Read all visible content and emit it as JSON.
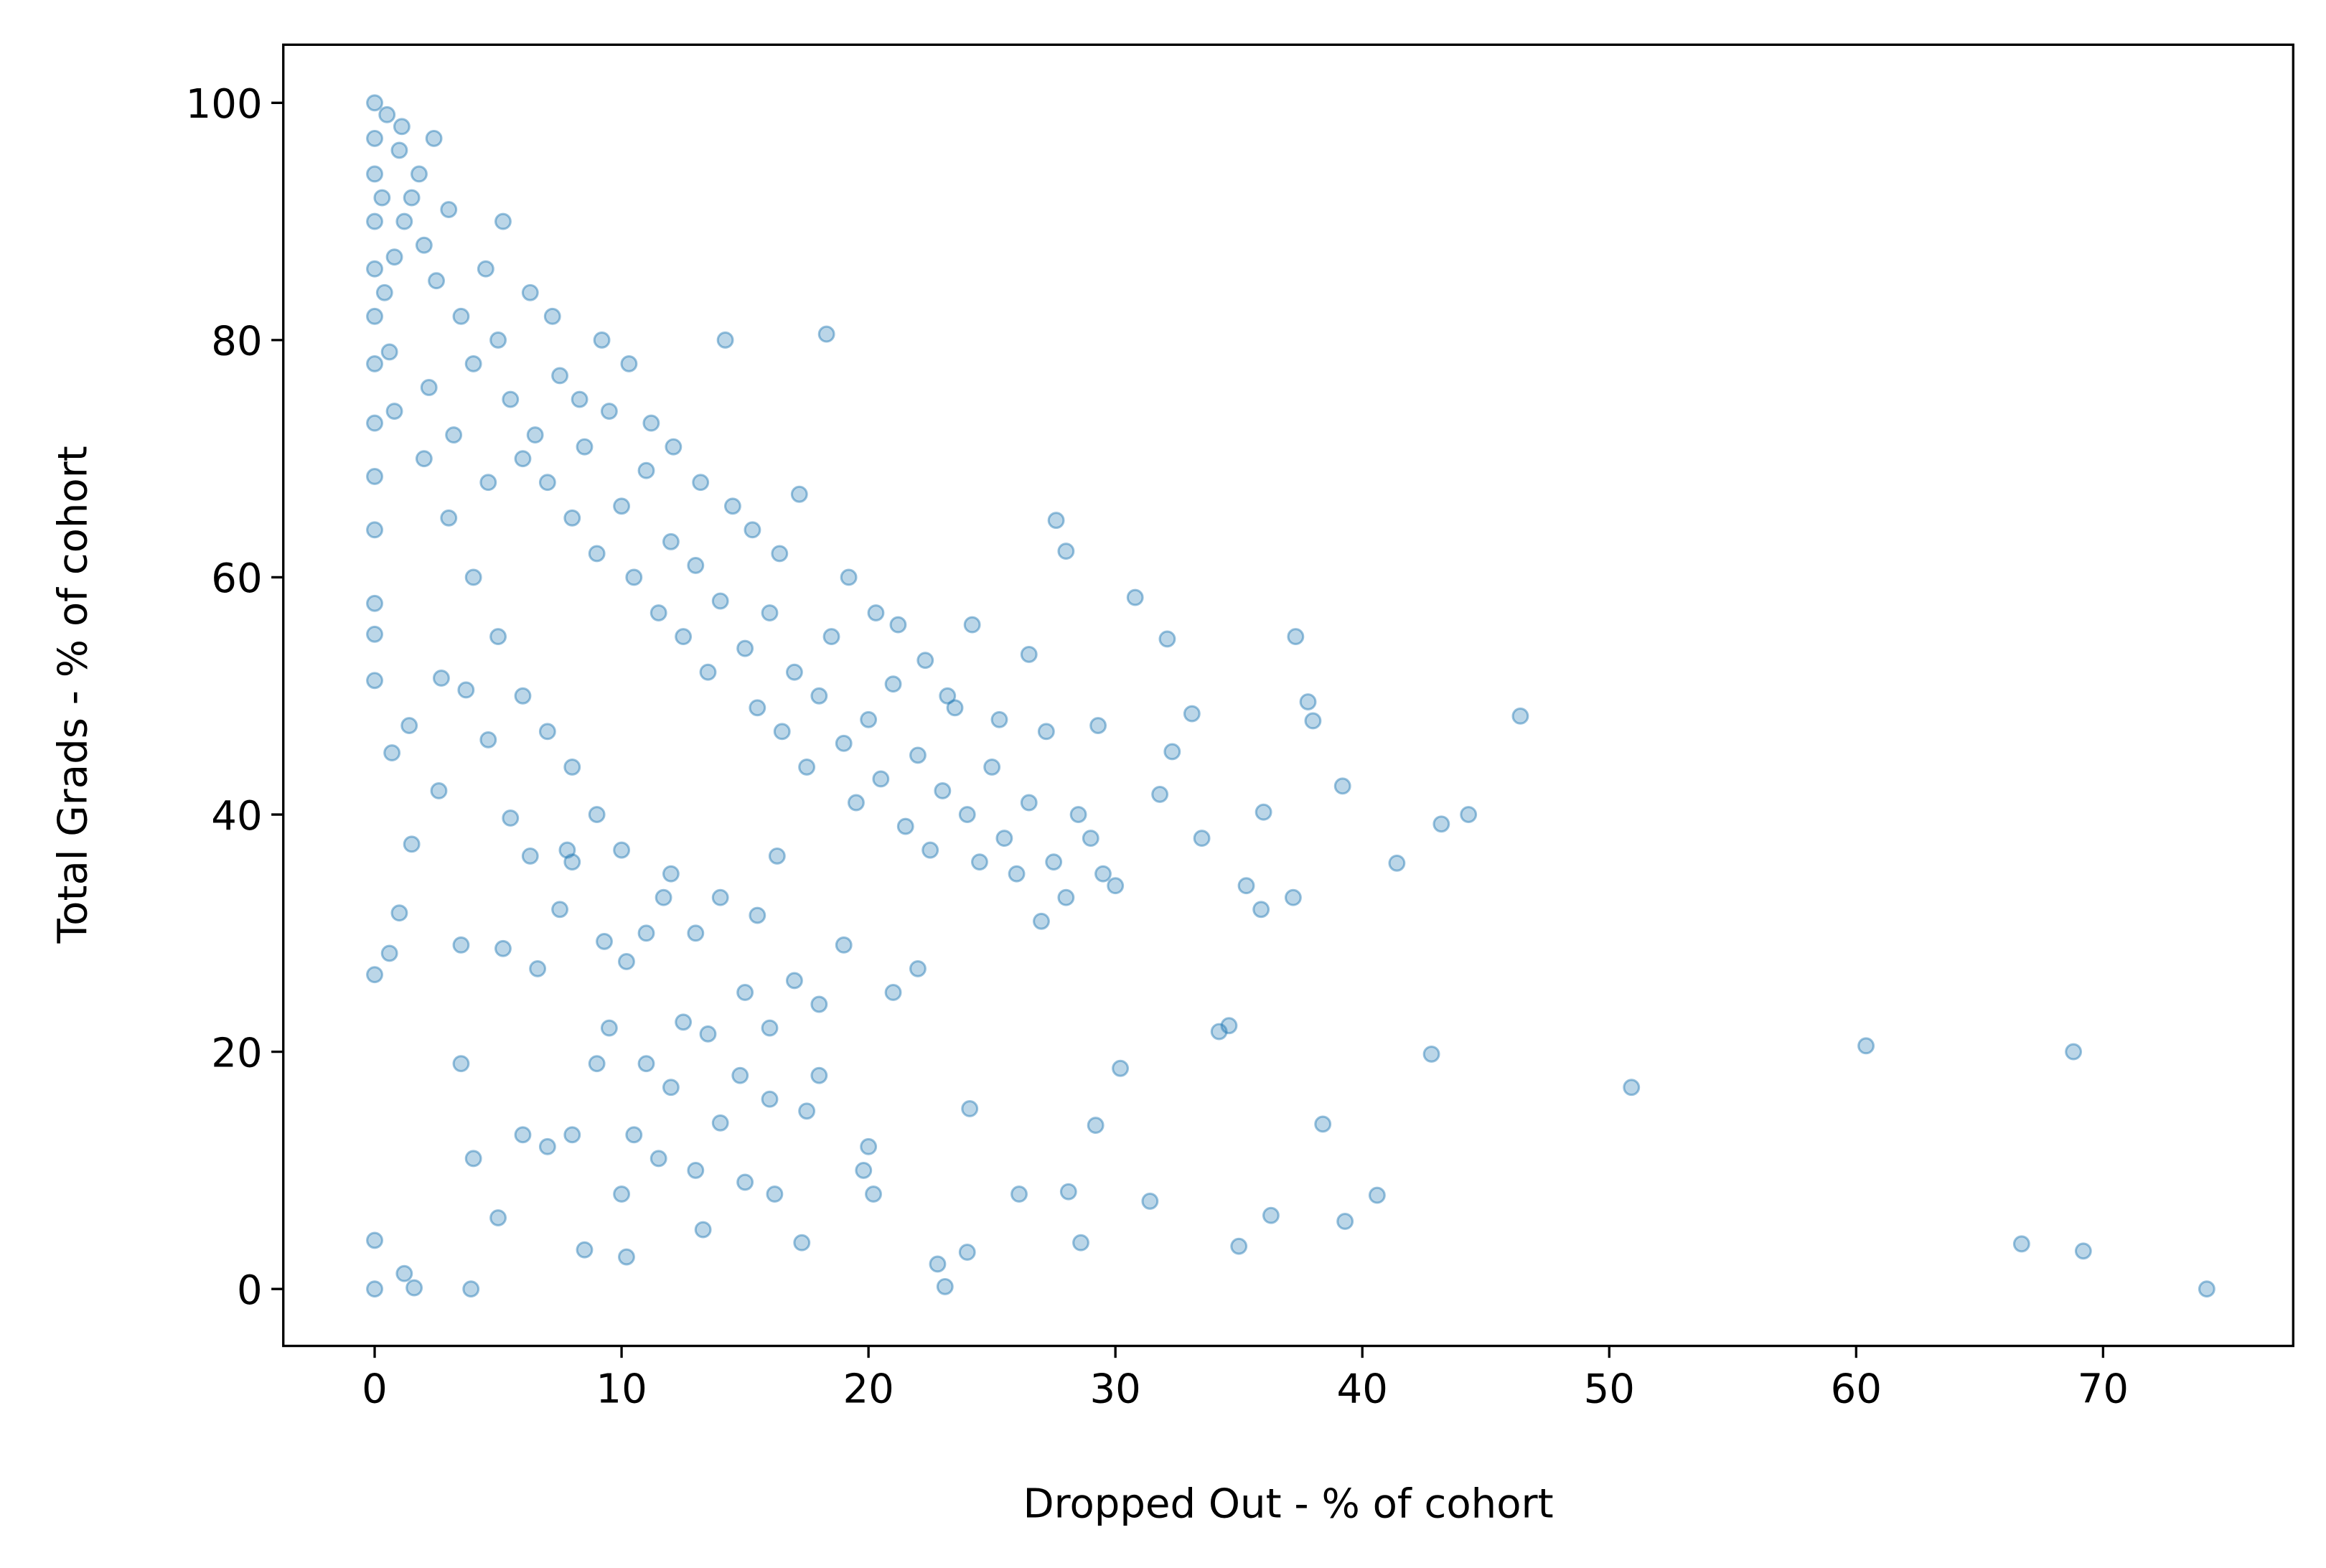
{
  "chart_data": {
    "type": "scatter",
    "x_label": "Dropped Out - % of cohort",
    "y_label": "Total Grads - % of cohort",
    "color": "#1f77b4",
    "xlim": [
      -3.7,
      77.7
    ],
    "ylim": [
      -4.8,
      104.9
    ],
    "xticks": [
      0,
      10,
      20,
      30,
      40,
      50,
      60,
      70
    ],
    "yticks": [
      0,
      20,
      40,
      60,
      80,
      100
    ],
    "grid": false,
    "x": [
      74.2,
      69.2,
      66.7,
      68.8,
      60.4,
      50.9,
      46.4,
      44.3,
      43.2,
      42.8,
      41.4,
      40.6,
      39.3,
      39.2,
      38.4,
      38,
      37.8,
      37.3,
      37.2,
      36.3,
      36,
      35.9,
      35.3,
      35,
      34.6,
      34.2,
      33.5,
      33.1,
      32.3,
      32.1,
      31.8,
      31.4,
      30.8,
      30.2,
      29.2,
      28.6,
      28.1,
      27.6,
      28,
      26.1,
      24.1,
      24,
      23.1,
      22.8,
      17.3,
      13.3,
      10.2,
      8.5,
      3.9,
      1.6,
      1.2,
      0,
      0,
      0,
      0.6,
      1,
      0.7,
      0,
      0,
      0,
      0,
      0,
      0,
      0,
      0,
      0,
      0,
      0,
      0,
      0,
      0.5,
      1,
      1.5,
      2,
      2.5,
      3,
      3.5,
      4,
      4.5,
      5,
      5.5,
      6,
      6.5,
      7,
      7.5,
      8,
      8.5,
      9,
      9.5,
      10,
      10.5,
      11,
      11.5,
      12,
      12.5,
      13,
      13.5,
      14,
      14.5,
      15,
      15.5,
      16,
      16.5,
      17,
      17.5,
      18,
      18.5,
      19,
      19.5,
      20,
      20.5,
      21,
      21.5,
      22,
      22.5,
      23,
      23.5,
      24,
      24.5,
      25,
      25.5,
      26,
      26.5,
      27,
      27.5,
      28,
      29,
      29.5,
      30,
      2,
      3,
      4,
      5,
      6,
      7,
      8,
      9,
      10,
      11,
      12,
      13,
      14,
      15,
      16,
      17,
      18,
      19,
      20,
      21,
      22,
      3.5,
      4,
      5,
      6,
      7,
      8,
      9,
      10,
      11,
      12,
      13,
      14,
      15,
      16,
      16.2,
      18,
      19.8,
      20.2,
      0.8,
      1.2,
      2.2,
      3.2,
      4.6,
      5.2,
      6.3,
      7.2,
      8.3,
      9.2,
      10.3,
      11.2,
      12.1,
      13.2,
      14.2,
      15.3,
      16.4,
      17.2,
      18.3,
      19.2,
      20.3,
      21.2,
      22.3,
      23.2,
      24.2,
      25.3,
      26.5,
      27.2,
      28.5,
      29.3,
      2.6,
      1.5,
      3.5,
      5.2,
      6.6,
      7.5,
      8,
      9.5,
      10.5,
      11.5,
      12.5,
      13.5,
      14.8,
      15.5,
      16.3,
      17.5,
      1.4,
      2.7,
      3.7,
      4.6,
      5.5,
      6.3,
      7.8,
      9.3,
      10.2,
      11.7,
      0.3,
      0.4,
      0.6,
      0.8,
      1.1,
      1.8,
      2.4
    ],
    "values": [
      0,
      3.2,
      3.8,
      20,
      20.5,
      17,
      48.3,
      40,
      39.2,
      19.8,
      35.9,
      7.9,
      5.7,
      42.4,
      13.9,
      47.9,
      49.5,
      55,
      33,
      6.2,
      40.2,
      32,
      34,
      3.6,
      22.2,
      21.7,
      38,
      48.5,
      45.3,
      54.8,
      41.7,
      7.4,
      58.3,
      18.6,
      13.8,
      3.9,
      8.2,
      64.8,
      62.2,
      8,
      15.2,
      3.1,
      0.2,
      2.1,
      3.9,
      5,
      2.7,
      3.3,
      0,
      0.1,
      1.3,
      0,
      4.1,
      26.5,
      28.3,
      31.7,
      45.2,
      51.3,
      55.2,
      57.8,
      64,
      68.5,
      73,
      78,
      82,
      86,
      90,
      94,
      97,
      100,
      99,
      96,
      92,
      88,
      85,
      91,
      82,
      78,
      86,
      80,
      75,
      70,
      72,
      68,
      77,
      65,
      71,
      62,
      74,
      66,
      60,
      69,
      57,
      63,
      55,
      61,
      52,
      58,
      66,
      54,
      49,
      57,
      47,
      52,
      44,
      50,
      55,
      46,
      41,
      48,
      43,
      51,
      39,
      45,
      37,
      42,
      49,
      40,
      36,
      44,
      38,
      35,
      41,
      31,
      36,
      33,
      38,
      35,
      34,
      70,
      65,
      60,
      55,
      50,
      47,
      44,
      40,
      37,
      30,
      35,
      30,
      33,
      25,
      22,
      26,
      18,
      29,
      12,
      25,
      27,
      19,
      11,
      6,
      13,
      12,
      13,
      19,
      8,
      19,
      17,
      10,
      14,
      9,
      16,
      8,
      24,
      10,
      8,
      87,
      90,
      76,
      72,
      68,
      90,
      84,
      82,
      75,
      80,
      78,
      73,
      71,
      68,
      80,
      64,
      62,
      67,
      80.5,
      60,
      57,
      56,
      53,
      50,
      56,
      48,
      53.5,
      47,
      40,
      47.5,
      42,
      37.5,
      29,
      28.7,
      27,
      32,
      36,
      22,
      13,
      11,
      22.5,
      21.5,
      18,
      31.5,
      36.5,
      15,
      47.5,
      51.5,
      50.5,
      46.3,
      39.7,
      36.5,
      37,
      29.3,
      27.6,
      33,
      92,
      84,
      79,
      74,
      98,
      94,
      97
    ]
  }
}
